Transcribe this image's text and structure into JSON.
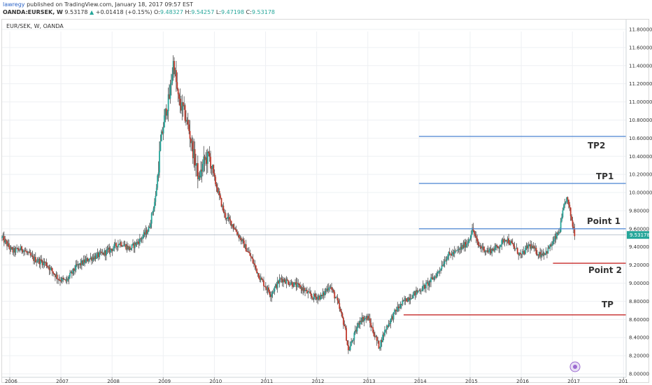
{
  "header": {
    "author": "lawregy",
    "published": "published on TradingView.com, January 18, 2017 09:57 EST",
    "symbol": "OANDA:EURSEK, W",
    "price": "9.53178",
    "change_arrow": "▲",
    "change": "+0.01418 (+0.15%)",
    "o_label": "O:",
    "o_value": "9.48327",
    "h_label": "H:",
    "h_value": "9.54257",
    "l_label": "L:",
    "l_value": "9.47198",
    "c_label": "C:",
    "c_value": "9.53178"
  },
  "colors": {
    "up": "#26a69a",
    "down": "#c0392b",
    "wick": "#333333",
    "blue_line": "#5b8fd6",
    "red_line": "#c62828",
    "price_badge": "#26a69a",
    "grid": "#eef0f3"
  },
  "chart_data": {
    "type": "candlestick",
    "symbol_label": "EUR/SEK, W, OANDA",
    "x_ticks": [
      "2006",
      "2007",
      "2008",
      "2009",
      "2010",
      "2011",
      "2012",
      "2013",
      "2014",
      "2015",
      "2016",
      "2017",
      "201"
    ],
    "y_ticks": [
      "11.80000",
      "11.60000",
      "11.40000",
      "11.20000",
      "11.00000",
      "10.80000",
      "10.60000",
      "10.40000",
      "10.20000",
      "10.00000",
      "9.80000",
      "9.60000",
      "9.40000",
      "9.20000",
      "9.00000",
      "8.80000",
      "8.60000",
      "8.40000",
      "8.20000",
      "8.00000"
    ],
    "y_range": [
      8.0,
      11.8
    ],
    "x_range": [
      2005.85,
      2018.05
    ],
    "grid": true,
    "last_price": "9.53178",
    "last_price_value": 9.53178,
    "price_path": [
      [
        2005.85,
        9.5
      ],
      [
        2006.05,
        9.35
      ],
      [
        2006.25,
        9.38
      ],
      [
        2006.45,
        9.27
      ],
      [
        2006.7,
        9.22
      ],
      [
        2006.95,
        9.05
      ],
      [
        2007.1,
        9.02
      ],
      [
        2007.3,
        9.18
      ],
      [
        2007.55,
        9.27
      ],
      [
        2007.8,
        9.32
      ],
      [
        2008.0,
        9.38
      ],
      [
        2008.15,
        9.45
      ],
      [
        2008.35,
        9.38
      ],
      [
        2008.55,
        9.48
      ],
      [
        2008.72,
        9.6
      ],
      [
        2008.85,
        9.95
      ],
      [
        2008.95,
        10.55
      ],
      [
        2009.05,
        10.9
      ],
      [
        2009.12,
        11.05
      ],
      [
        2009.2,
        11.45
      ],
      [
        2009.3,
        11.0
      ],
      [
        2009.4,
        10.9
      ],
      [
        2009.5,
        10.7
      ],
      [
        2009.6,
        10.4
      ],
      [
        2009.7,
        10.15
      ],
      [
        2009.8,
        10.35
      ],
      [
        2009.9,
        10.4
      ],
      [
        2010.0,
        10.15
      ],
      [
        2010.2,
        9.75
      ],
      [
        2010.35,
        9.65
      ],
      [
        2010.5,
        9.5
      ],
      [
        2010.7,
        9.3
      ],
      [
        2010.9,
        9.05
      ],
      [
        2011.1,
        8.88
      ],
      [
        2011.3,
        9.05
      ],
      [
        2011.5,
        9.0
      ],
      [
        2011.7,
        8.95
      ],
      [
        2011.9,
        8.85
      ],
      [
        2012.1,
        8.85
      ],
      [
        2012.25,
        8.98
      ],
      [
        2012.4,
        8.8
      ],
      [
        2012.55,
        8.52
      ],
      [
        2012.62,
        8.25
      ],
      [
        2012.72,
        8.4
      ],
      [
        2012.85,
        8.6
      ],
      [
        2013.0,
        8.62
      ],
      [
        2013.15,
        8.4
      ],
      [
        2013.22,
        8.3
      ],
      [
        2013.35,
        8.5
      ],
      [
        2013.55,
        8.7
      ],
      [
        2013.75,
        8.82
      ],
      [
        2013.95,
        8.9
      ],
      [
        2014.15,
        8.98
      ],
      [
        2014.35,
        9.1
      ],
      [
        2014.55,
        9.3
      ],
      [
        2014.75,
        9.35
      ],
      [
        2014.95,
        9.45
      ],
      [
        2015.05,
        9.6
      ],
      [
        2015.15,
        9.42
      ],
      [
        2015.35,
        9.35
      ],
      [
        2015.55,
        9.4
      ],
      [
        2015.7,
        9.5
      ],
      [
        2015.85,
        9.4
      ],
      [
        2016.0,
        9.3
      ],
      [
        2016.15,
        9.42
      ],
      [
        2016.35,
        9.32
      ],
      [
        2016.5,
        9.35
      ],
      [
        2016.62,
        9.45
      ],
      [
        2016.75,
        9.58
      ],
      [
        2016.82,
        9.8
      ],
      [
        2016.88,
        9.95
      ],
      [
        2016.93,
        9.85
      ],
      [
        2017.0,
        9.65
      ],
      [
        2017.05,
        9.53178
      ]
    ],
    "horizontal_lines": [
      {
        "label": "TP2",
        "value": 10.62,
        "x_start": 2014.0,
        "color": "blue"
      },
      {
        "label": "TP1",
        "value": 10.1,
        "x_start": 2014.0,
        "color": "blue"
      },
      {
        "label": "Point 1",
        "value": 9.6,
        "x_start": 2014.0,
        "color": "blue"
      },
      {
        "label": "Point 2",
        "value": 9.22,
        "x_start": 2016.62,
        "color": "red"
      },
      {
        "label": "TP",
        "value": 8.65,
        "x_start": 2013.7,
        "color": "red"
      }
    ],
    "annotations": [
      "TP2",
      "TP1",
      "Point 1",
      "Point 2",
      "TP"
    ]
  }
}
